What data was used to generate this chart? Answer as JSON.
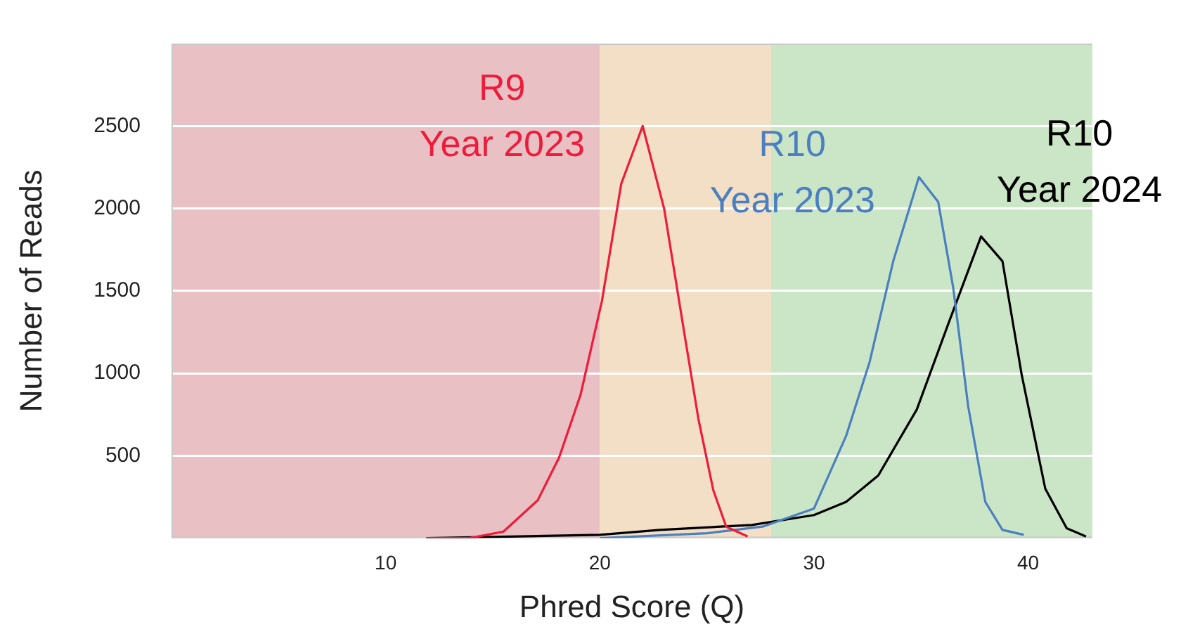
{
  "chart_data": {
    "type": "line",
    "xlabel": "Phred Score (Q)",
    "ylabel": "Number of Reads",
    "xlim": [
      0,
      43
    ],
    "xticks": [
      10,
      20,
      30,
      40
    ],
    "ylim": [
      0,
      3000
    ],
    "yticks": [
      500,
      1000,
      1500,
      2000,
      2500
    ],
    "grid": "y",
    "legend": false,
    "marker": "none",
    "line_style": "solid",
    "bands": [
      {
        "axis": "x",
        "from": 0,
        "to": 20,
        "color": "#e9c0c3"
      },
      {
        "axis": "x",
        "from": 20,
        "to": 28,
        "color": "#f2dfc6"
      },
      {
        "axis": "x",
        "from": 28,
        "to": 43,
        "color": "#cbe6c6"
      }
    ],
    "series": [
      {
        "name": "R9 Year 2023",
        "color": "#ee1c3a",
        "x": [
          11.9,
          13.9,
          15.5,
          17.1,
          18.1,
          19.1,
          20.1,
          21.0,
          22.0,
          23.0,
          24.0,
          24.6,
          25.3,
          25.9,
          26.9
        ],
        "values": [
          0,
          0,
          40,
          230,
          490,
          870,
          1440,
          2150,
          2500,
          2000,
          1200,
          725,
          290,
          70,
          10
        ]
      },
      {
        "name": "R10 Year 2023",
        "color": "#4a7fc0",
        "x": [
          20.0,
          25.0,
          27.6,
          30.0,
          31.5,
          32.6,
          33.7,
          34.9,
          35.8,
          36.5,
          37.2,
          38.0,
          38.8,
          39.8
        ],
        "values": [
          0,
          30,
          70,
          180,
          620,
          1070,
          1680,
          2190,
          2040,
          1520,
          800,
          220,
          50,
          20
        ]
      },
      {
        "name": "R10 Year 2024",
        "color": "#000000",
        "x": [
          11.9,
          20.0,
          22.8,
          27.1,
          30.0,
          31.5,
          33.0,
          34.8,
          36.3,
          37.8,
          38.8,
          39.7,
          40.8,
          41.8,
          42.7
        ],
        "values": [
          0,
          20,
          50,
          80,
          140,
          220,
          380,
          780,
          1310,
          1830,
          1680,
          990,
          300,
          60,
          10
        ]
      }
    ]
  }
}
